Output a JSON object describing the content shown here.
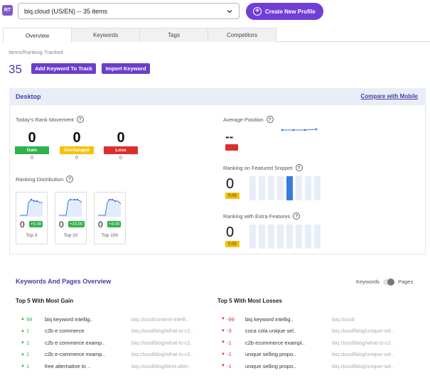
{
  "header": {
    "badge": "RT",
    "profile_select": "biq.cloud (US/EN) -- 35 items",
    "create_button": "Create New Profile"
  },
  "tabs": [
    {
      "label": "Overview",
      "active": true
    },
    {
      "label": "Keywords",
      "active": false
    },
    {
      "label": "Tags",
      "active": false
    },
    {
      "label": "Competitors",
      "active": false
    }
  ],
  "tracked": {
    "label": "Items/Ranking Tracked",
    "count": "35",
    "add_button": "Add Keyword To Track",
    "import_button": "Import Keyword"
  },
  "desktop": {
    "title": "Desktop",
    "compare_link": "Compare with Mobile"
  },
  "rank_movement": {
    "title": "Today's Rank Movement",
    "gain": {
      "value": "0",
      "label": "Gain",
      "sub": "0",
      "color": "#2db34a"
    },
    "unchanged": {
      "value": "0",
      "label": "Unchanged",
      "sub": "0",
      "color": "#f4c20d"
    },
    "loss": {
      "value": "0",
      "label": "Loss",
      "sub": "0",
      "color": "#d9302c"
    }
  },
  "average_position": {
    "title": "Average Position",
    "value": "--"
  },
  "ranking_distribution": {
    "title": "Ranking Distribution",
    "cards": [
      {
        "value": "0",
        "badge": "+5.00",
        "label": "Top 3"
      },
      {
        "value": "0",
        "badge": "+23.00",
        "label": "Top 10"
      },
      {
        "value": "0",
        "badge": "+8.00",
        "label": "Top 100"
      }
    ]
  },
  "featured_snippet": {
    "title": "Ranking on Featured Snippet",
    "value": "0",
    "badge": "0.00",
    "highlighted_bar": 4
  },
  "extra_features": {
    "title": "Ranking with Extra Features",
    "value": "0",
    "badge": "0.00"
  },
  "kw_pages": {
    "title": "Keywords And Pages Overview",
    "toggle_left": "Keywords",
    "toggle_right": "Pages"
  },
  "gains": {
    "title": "Top 5 With Most Gain",
    "rows": [
      {
        "delta": "99",
        "keyword": "biq keyword intellig..",
        "url": "biq.cloud/content-intelli.."
      },
      {
        "delta": "1",
        "keyword": "c2b e commerce",
        "url": "biq.cloud/blog/what-is-c2.."
      },
      {
        "delta": "1",
        "keyword": "c2b e commerce examp..",
        "url": "biq.cloud/blog/what-is-c2.."
      },
      {
        "delta": "1",
        "keyword": "c2b e-commerce examp..",
        "url": "biq.cloud/blog/what-is-c2.."
      },
      {
        "delta": "1",
        "keyword": "free alternative to ..",
        "url": "biq.cloud/blog/best-alter.."
      }
    ]
  },
  "losses": {
    "title": "Top 5 With Most Losses",
    "rows": [
      {
        "delta": "-99",
        "keyword": "biq keyword intellig..",
        "url": "biq.cloud/"
      },
      {
        "delta": "-3",
        "keyword": "coca cola unique sel..",
        "url": "biq.cloud/blog/unique-sel.."
      },
      {
        "delta": "-1",
        "keyword": "c2b ecommerce exampl..",
        "url": "biq.cloud/blog/what-is-c2.."
      },
      {
        "delta": "-1",
        "keyword": "unique selling propo..",
        "url": "biq.cloud/blog/unique-sel.."
      },
      {
        "delta": "-1",
        "keyword": "unique selling propo..",
        "url": "biq.cloud/blog/unique-sel.."
      }
    ]
  }
}
